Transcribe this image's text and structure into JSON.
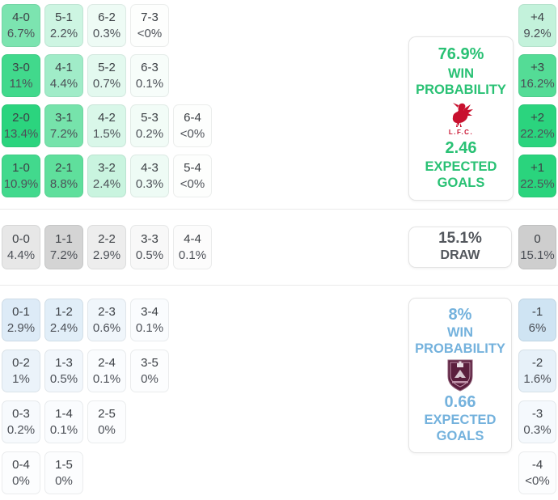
{
  "chart_data": {
    "type": "heatmap",
    "description": "Correct-score probability matrix with win probability, expected goals and goal-difference distribution (home team top/green, draw middle/gray, away team bottom/blue)",
    "legend_position": "none",
    "grid": "off",
    "colors": {
      "home_accent": "#29c174",
      "away_accent": "#74b2dd",
      "draw_accent": "#53575d",
      "cell_text": "#3c4045",
      "home_crest_red": "#c8102e",
      "away_crest_claret": "#5b1f3e"
    },
    "home": {
      "panel": {
        "probability": "76.9%",
        "probability_label": "WIN PROBABILITY",
        "expected_goals": "2.46",
        "expected_goals_label": "EXPECTED GOALS",
        "crest_caption": "L.F.C."
      },
      "score_rows": [
        [
          {
            "score": "4-0",
            "pct": "6.7%",
            "bg": "#7ce4b0"
          },
          {
            "score": "5-1",
            "pct": "2.2%",
            "bg": "#cdf5e2"
          },
          {
            "score": "6-2",
            "pct": "0.3%",
            "bg": "#eefbf5"
          },
          {
            "score": "7-3",
            "pct": "<0%",
            "bg": "#fdfefd"
          }
        ],
        [
          {
            "score": "3-0",
            "pct": "11%",
            "bg": "#41d98c"
          },
          {
            "score": "4-1",
            "pct": "4.4%",
            "bg": "#a0ecc8"
          },
          {
            "score": "5-2",
            "pct": "0.7%",
            "bg": "#e3f9ef"
          },
          {
            "score": "6-3",
            "pct": "0.1%",
            "bg": "#f7fdfa"
          }
        ],
        [
          {
            "score": "2-0",
            "pct": "13.4%",
            "bg": "#2bd47e"
          },
          {
            "score": "3-1",
            "pct": "7.2%",
            "bg": "#76e3ab"
          },
          {
            "score": "4-2",
            "pct": "1.5%",
            "bg": "#d9f7e9"
          },
          {
            "score": "5-3",
            "pct": "0.2%",
            "bg": "#f2fcf7"
          },
          {
            "score": "6-4",
            "pct": "<0%",
            "bg": "#fdfefd"
          }
        ],
        [
          {
            "score": "1-0",
            "pct": "10.9%",
            "bg": "#42d98d"
          },
          {
            "score": "2-1",
            "pct": "8.8%",
            "bg": "#5fdf9c"
          },
          {
            "score": "3-2",
            "pct": "2.4%",
            "bg": "#c9f4df"
          },
          {
            "score": "4-3",
            "pct": "0.3%",
            "bg": "#eefbf5"
          },
          {
            "score": "5-4",
            "pct": "<0%",
            "bg": "#fdfefd"
          }
        ]
      ],
      "goal_diff": [
        {
          "diff": "+4",
          "pct": "9.2%",
          "bg": "#c3f2db"
        },
        {
          "diff": "+3",
          "pct": "16.2%",
          "bg": "#54dc96"
        },
        {
          "diff": "+2",
          "pct": "22.2%",
          "bg": "#2bd47e"
        },
        {
          "diff": "+1",
          "pct": "22.5%",
          "bg": "#2ad47d"
        }
      ]
    },
    "draw": {
      "panel": {
        "probability": "15.1%",
        "label": "DRAW"
      },
      "score_rows": [
        [
          {
            "score": "0-0",
            "pct": "4.4%",
            "bg": "#e7e7e7"
          },
          {
            "score": "1-1",
            "pct": "7.2%",
            "bg": "#d4d4d4"
          },
          {
            "score": "2-2",
            "pct": "2.9%",
            "bg": "#ededed"
          },
          {
            "score": "3-3",
            "pct": "0.5%",
            "bg": "#f8f8f8"
          },
          {
            "score": "4-4",
            "pct": "0.1%",
            "bg": "#fcfcfc"
          }
        ]
      ],
      "goal_diff": [
        {
          "diff": "0",
          "pct": "15.1%",
          "bg": "#cecece"
        }
      ]
    },
    "away": {
      "panel": {
        "probability": "8%",
        "probability_label": "WIN PROBABILITY",
        "expected_goals": "0.66",
        "expected_goals_label": "EXPECTED GOALS"
      },
      "score_rows": [
        [
          {
            "score": "0-1",
            "pct": "2.9%",
            "bg": "#ddebf7"
          },
          {
            "score": "1-2",
            "pct": "2.4%",
            "bg": "#e1eef8"
          },
          {
            "score": "2-3",
            "pct": "0.6%",
            "bg": "#f0f6fb"
          },
          {
            "score": "3-4",
            "pct": "0.1%",
            "bg": "#fafcfe"
          }
        ],
        [
          {
            "score": "0-2",
            "pct": "1%",
            "bg": "#ebf3fa"
          },
          {
            "score": "1-3",
            "pct": "0.5%",
            "bg": "#f2f7fc"
          },
          {
            "score": "2-4",
            "pct": "0.1%",
            "bg": "#fafcfe"
          },
          {
            "score": "3-5",
            "pct": "0%",
            "bg": "#fcfdfe"
          }
        ],
        [
          {
            "score": "0-3",
            "pct": "0.2%",
            "bg": "#f7fafd"
          },
          {
            "score": "1-4",
            "pct": "0.1%",
            "bg": "#fafcfe"
          },
          {
            "score": "2-5",
            "pct": "0%",
            "bg": "#fcfdfe"
          }
        ],
        [
          {
            "score": "0-4",
            "pct": "0%",
            "bg": "#fcfdfe"
          },
          {
            "score": "1-5",
            "pct": "0%",
            "bg": "#fcfdfe"
          }
        ]
      ],
      "goal_diff": [
        {
          "diff": "-1",
          "pct": "6%",
          "bg": "#cfe4f3"
        },
        {
          "diff": "-2",
          "pct": "1.6%",
          "bg": "#e7f1f9"
        },
        {
          "diff": "-3",
          "pct": "0.3%",
          "bg": "#f5f9fd"
        },
        {
          "diff": "-4",
          "pct": "<0%",
          "bg": "#fcfdfe"
        }
      ]
    }
  }
}
